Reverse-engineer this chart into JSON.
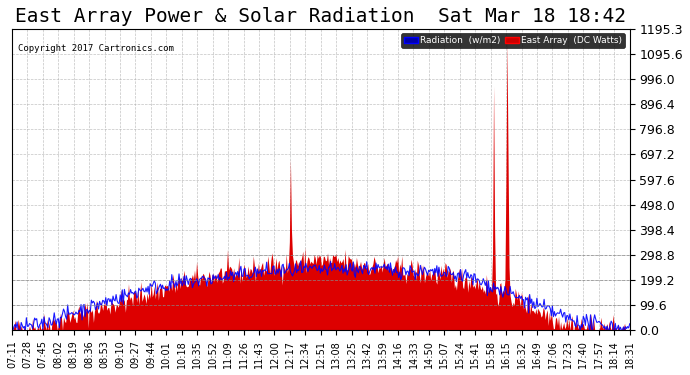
{
  "title": "East Array Power & Solar Radiation  Sat Mar 18 18:42",
  "copyright": "Copyright 2017 Cartronics.com",
  "background_color": "#ffffff",
  "plot_bg_color": "#ffffff",
  "grid_color": "#aaaaaa",
  "yticks": [
    0.0,
    99.6,
    199.2,
    298.8,
    398.4,
    498.0,
    597.6,
    697.2,
    796.8,
    896.4,
    996.0,
    1095.6,
    1195.3
  ],
  "ymin": 0.0,
  "ymax": 1195.3,
  "xtick_labels": [
    "07:11",
    "07:28",
    "07:45",
    "08:02",
    "08:19",
    "08:36",
    "08:53",
    "09:10",
    "09:27",
    "09:44",
    "10:01",
    "10:18",
    "10:35",
    "10:52",
    "11:09",
    "11:26",
    "11:43",
    "12:00",
    "12:17",
    "12:34",
    "12:51",
    "13:08",
    "13:25",
    "13:42",
    "13:59",
    "14:16",
    "14:33",
    "14:50",
    "15:07",
    "15:24",
    "15:41",
    "15:58",
    "16:15",
    "16:32",
    "16:49",
    "17:06",
    "17:23",
    "17:40",
    "17:57",
    "18:14",
    "18:31"
  ],
  "legend_radiation_color": "#0000ff",
  "legend_radiation_bg": "#0000aa",
  "legend_east_color": "#ff0000",
  "legend_east_bg": "#cc0000",
  "legend_radiation_label": "Radiation  (w/m2)",
  "legend_east_label": "East Array  (DC Watts)",
  "title_fontsize": 14,
  "axis_fontsize": 7,
  "ylabel_right_fontsize": 9
}
